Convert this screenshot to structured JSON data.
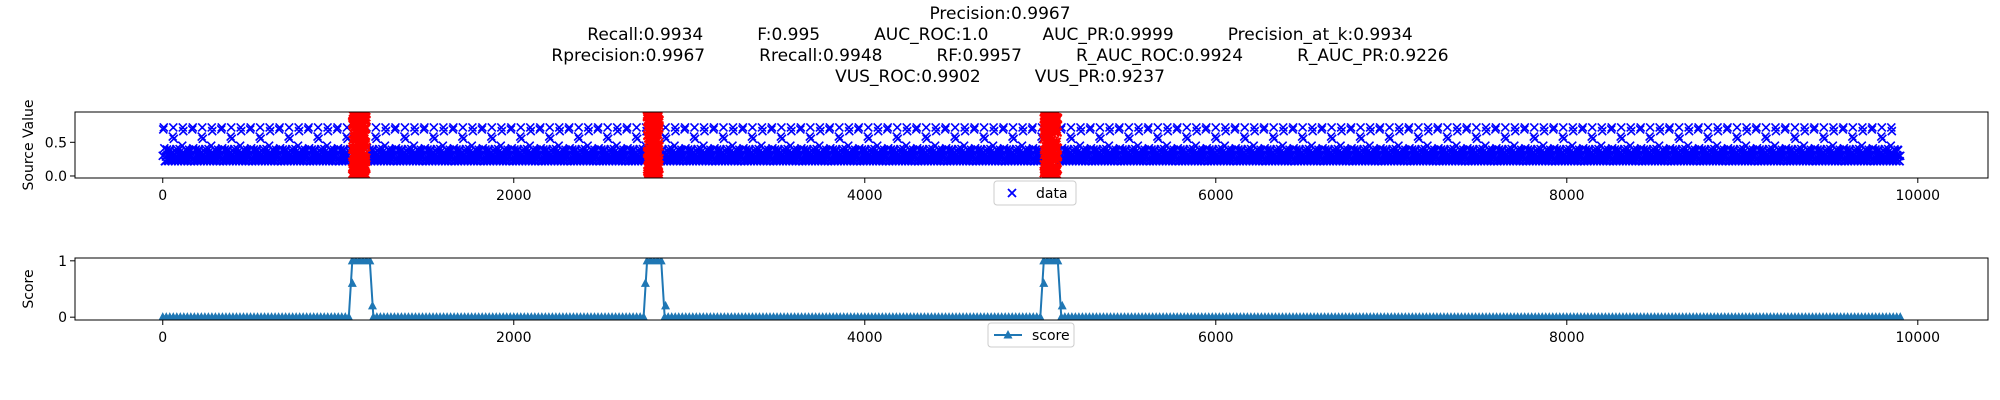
{
  "chart_data": [
    {
      "type": "scatter",
      "title_lines": [
        "Precision:0.9967",
        "Recall:0.9934          F:0.995          AUC_ROC:1.0          AUC_PR:0.9999          Precision_at_k:0.9934",
        "Rprecision:0.9967          Rrecall:0.9948          RF:0.9957          R_AUC_ROC:0.9924          R_AUC_PR:0.9226",
        "VUS_ROC:0.9902          VUS_PR:0.9237"
      ],
      "ylabel": "Source Value",
      "xlim": [
        -500,
        10400
      ],
      "ylim": [
        -0.03,
        0.95
      ],
      "x_ticks": [
        0,
        2000,
        4000,
        6000,
        8000,
        10000
      ],
      "x_tick_labels": [
        "0",
        "2000",
        "4000",
        "6000",
        "8000",
        "10000"
      ],
      "y_ticks": [
        0.0,
        0.5
      ],
      "y_tick_labels": [
        "0.0",
        "0.5"
      ],
      "series": [
        {
          "name": "data",
          "marker": "x",
          "color": "#0000ff",
          "x_range": [
            0,
            9900
          ],
          "period": 55,
          "y_min": 0.22,
          "y_max": 0.72
        }
      ],
      "anomaly_ranges": [
        [
          1080,
          1160
        ],
        [
          2760,
          2830
        ],
        [
          5020,
          5100
        ]
      ],
      "anomaly_color": "#ff0000",
      "anomaly_y_range": [
        0.0,
        0.95
      ],
      "legend": {
        "entries": [
          "data"
        ],
        "position": "lower-center"
      }
    },
    {
      "type": "line",
      "ylabel": "Score",
      "xlim": [
        -500,
        10400
      ],
      "ylim": [
        -0.05,
        1.05
      ],
      "x_ticks": [
        0,
        2000,
        4000,
        6000,
        8000,
        10000
      ],
      "x_tick_labels": [
        "0",
        "2000",
        "4000",
        "6000",
        "8000",
        "10000"
      ],
      "y_ticks": [
        0,
        1
      ],
      "y_tick_labels": [
        "0",
        "1"
      ],
      "series": [
        {
          "name": "score",
          "marker": "^",
          "color": "#1f77b4",
          "x_range": [
            0,
            9900
          ],
          "high_ranges": [
            [
              1080,
              1180
            ],
            [
              2750,
              2850
            ],
            [
              5020,
              5110
            ]
          ],
          "high_value": 1.0,
          "base_value": 0.0
        }
      ],
      "legend": {
        "entries": [
          "score"
        ],
        "position": "lower-center"
      }
    }
  ]
}
